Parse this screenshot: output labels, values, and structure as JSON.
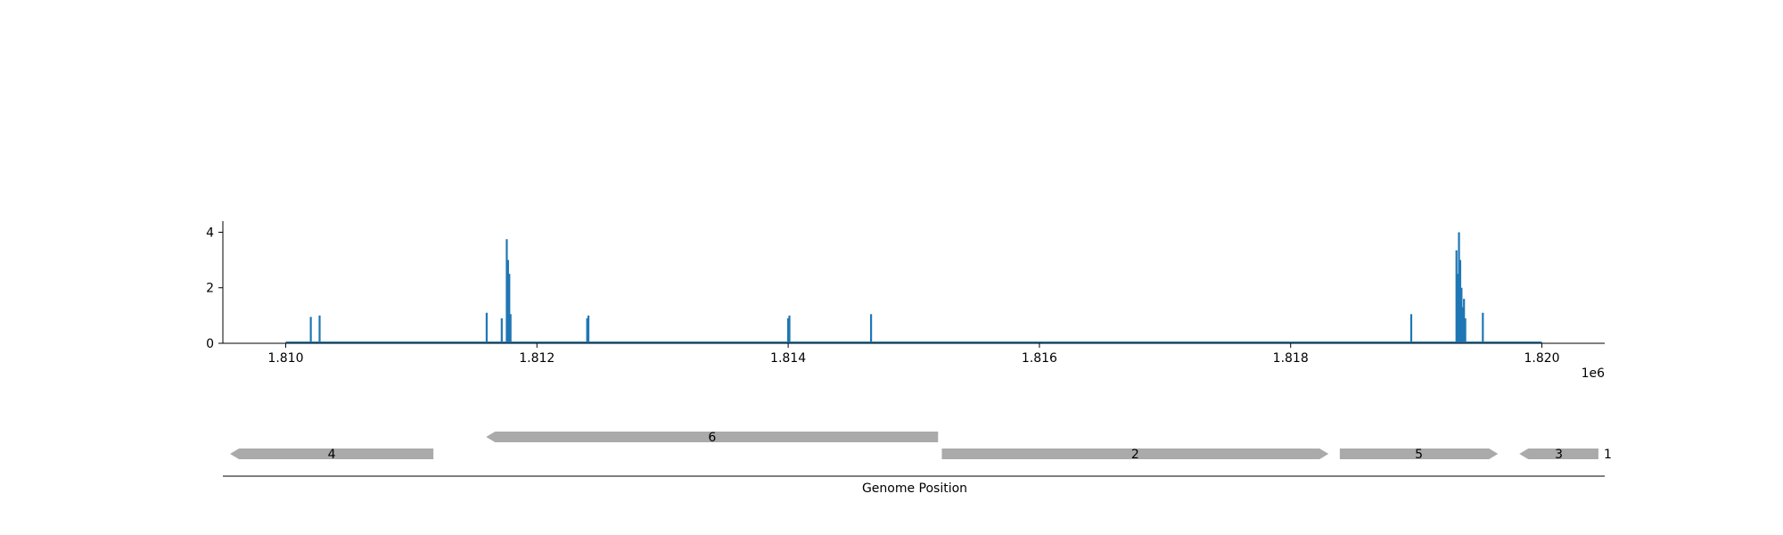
{
  "chart_data": [
    {
      "type": "line",
      "title": "",
      "xlabel": "",
      "ylabel": "",
      "x_offset_label": "1e6",
      "xlim": [
        1.8095,
        1.8205
      ],
      "ylim": [
        0,
        4.4
      ],
      "x_ticks": [
        1.81,
        1.812,
        1.814,
        1.816,
        1.818,
        1.82
      ],
      "x_tick_labels": [
        "1.810",
        "1.812",
        "1.814",
        "1.816",
        "1.818",
        "1.820"
      ],
      "y_ticks": [
        0,
        2,
        4
      ],
      "y_tick_labels": [
        "0",
        "2",
        "4"
      ],
      "baseline_range": [
        1.81,
        1.82
      ],
      "grid": false,
      "series_color": "#1f77b4",
      "series": [
        {
          "x": [
            1.8102,
            1.81027,
            1.8116,
            1.81172,
            1.81176,
            1.81177,
            1.81178,
            1.81179,
            1.8124,
            1.81241,
            1.814,
            1.81401,
            1.81466,
            1.81896,
            1.81932,
            1.81933,
            1.81934,
            1.81935,
            1.81936,
            1.81937,
            1.81938,
            1.81939,
            1.81953
          ],
          "y": [
            0.95,
            1.0,
            1.1,
            0.9,
            3.75,
            3.0,
            2.5,
            1.05,
            0.9,
            1.0,
            0.9,
            1.0,
            1.05,
            1.05,
            3.35,
            2.5,
            4.0,
            3.0,
            2.0,
            1.3,
            1.6,
            0.9,
            1.1
          ]
        }
      ]
    },
    {
      "type": "gene-track",
      "xlabel": "Genome Position",
      "feature_color": "#aaaaaa",
      "features": [
        {
          "label": "4",
          "start": 1.80955,
          "end": 1.81117,
          "strand": "-",
          "row": 0
        },
        {
          "label": "6",
          "start": 1.81159,
          "end": 1.81519,
          "strand": "-",
          "row": 1
        },
        {
          "label": "2",
          "start": 1.81522,
          "end": 1.8183,
          "strand": "+",
          "row": 0
        },
        {
          "label": "5",
          "start": 1.81839,
          "end": 1.81965,
          "strand": "+",
          "row": 0
        },
        {
          "label": "3",
          "start": 1.81982,
          "end": 1.82045,
          "strand": "-",
          "row": 0
        },
        {
          "label": "1",
          "start": 1.8205,
          "end": 1.82052,
          "strand": "+",
          "row": 0
        }
      ]
    }
  ]
}
